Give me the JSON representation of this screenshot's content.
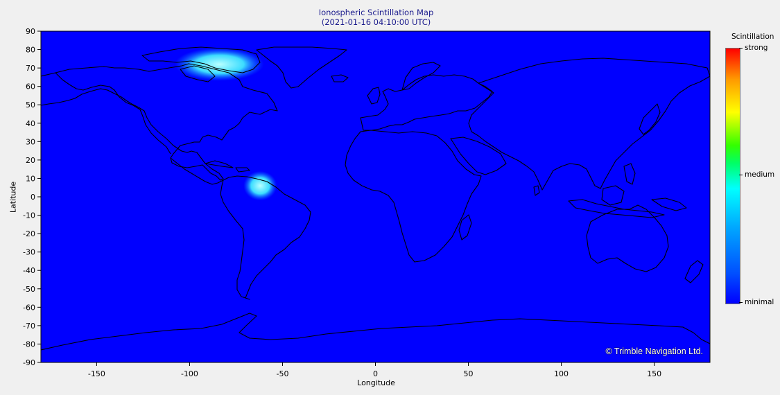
{
  "title_line1": "Ionospheric Scintillation Map",
  "title_line2": "(2021-01-16 04:10:00 UTC)",
  "xaxis": {
    "label": "Longitude",
    "ticks": [
      -150,
      -100,
      -50,
      0,
      50,
      100,
      150
    ]
  },
  "yaxis": {
    "label": "Latitude",
    "ticks": [
      90,
      80,
      70,
      60,
      50,
      40,
      30,
      20,
      10,
      0,
      -10,
      -20,
      -30,
      -40,
      -50,
      -60,
      -70,
      -80,
      -90
    ]
  },
  "legend": {
    "title": "Scintillation",
    "strong": "strong",
    "medium": "medium",
    "minimal": "minimal",
    "position": "right"
  },
  "copyright": "© Trimble Navigation Ltd.",
  "colors": {
    "ocean": "#0000ff",
    "land": "#0000ff",
    "coast": "#000000",
    "scint_low": "#00e5ff",
    "scint_peak": "#a0ffff"
  },
  "map": {
    "extent_lon": [
      -180,
      180
    ],
    "extent_lat": [
      -90,
      90
    ],
    "hotspots": [
      {
        "name": "Canadian Arctic",
        "lon": -84,
        "lat": 72,
        "rx_deg": 24,
        "ry_deg": 9,
        "level": "low"
      },
      {
        "name": "Northern South America",
        "lon": -62,
        "lat": 6,
        "rx_deg": 9,
        "ry_deg": 8,
        "level": "low"
      }
    ]
  }
}
